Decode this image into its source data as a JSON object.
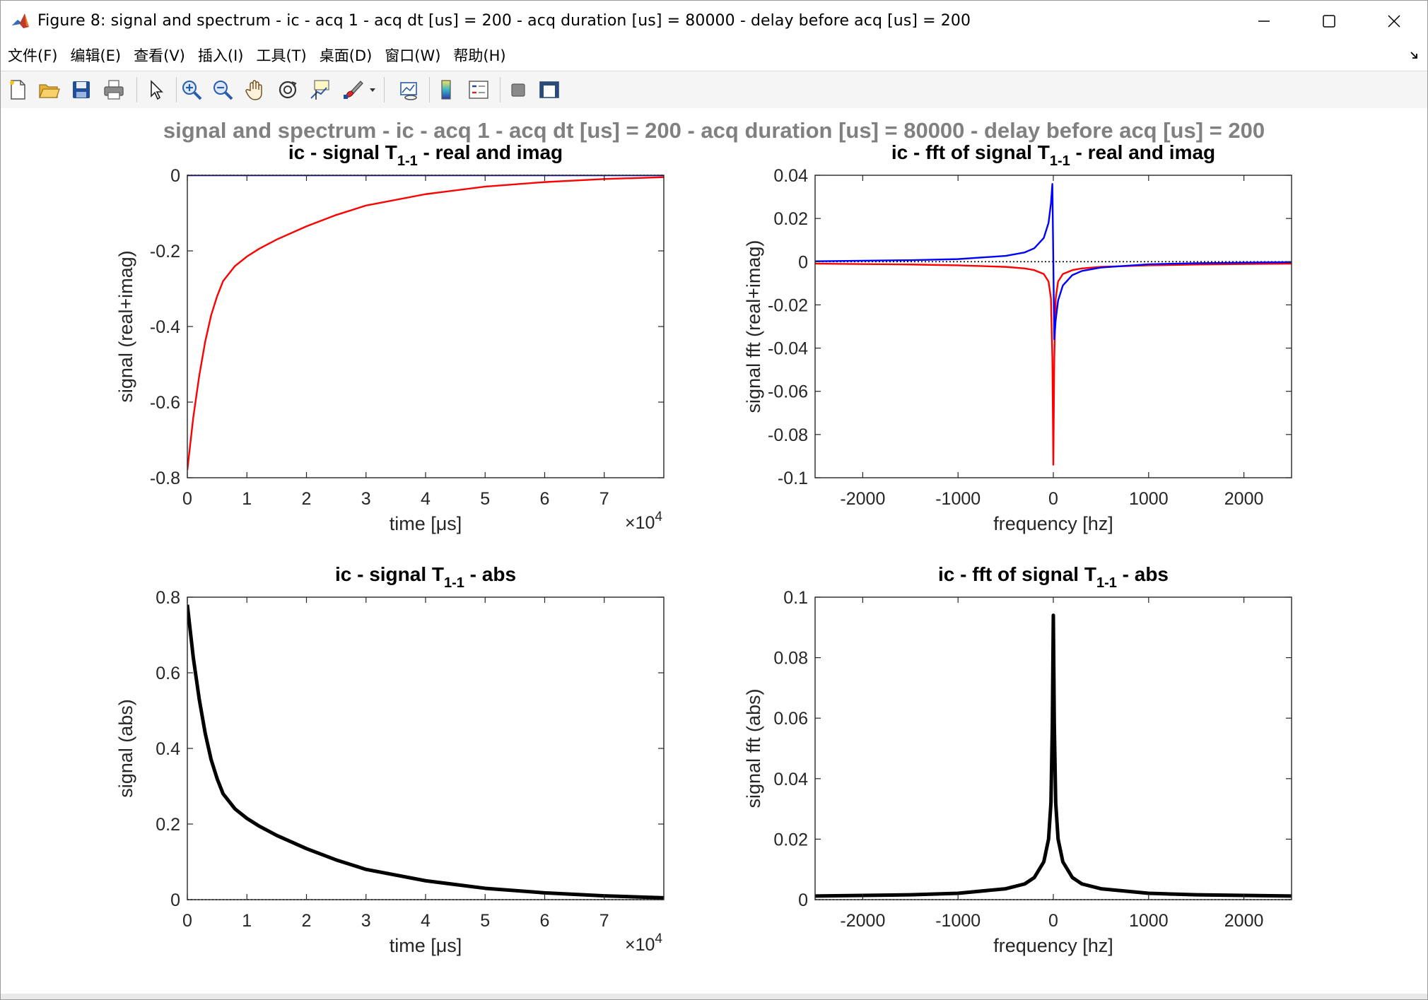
{
  "window": {
    "title": "Figure 8: signal and spectrum - ic - acq 1 - acq dt [us] = 200 - acq duration [us] = 80000 - delay before acq [us] = 200",
    "controls": [
      "minimize-icon",
      "maximize-icon",
      "close-icon"
    ]
  },
  "menu": {
    "items": [
      "文件(F)",
      "编辑(E)",
      "查看(V)",
      "插入(I)",
      "工具(T)",
      "桌面(D)",
      "窗口(W)",
      "帮助(H)"
    ]
  },
  "toolbar": {
    "icons": [
      "new-figure-icon",
      "open-file-icon",
      "save-icon",
      "print-icon",
      "select-arrow-icon",
      "zoom-in-icon",
      "zoom-out-icon",
      "pan-hand-icon",
      "rotate-3d-icon",
      "data-cursor-icon",
      "brush-icon",
      "brush-dropdown-icon",
      "link-plot-icon",
      "colorbar-icon",
      "legend-icon",
      "hide-plot-tools-icon",
      "show-plot-tools-icon"
    ]
  },
  "figure": {
    "suptitle": "signal and spectrum - ic - acq 1 - acq dt [us] = 200 - acq duration [us] = 80000 - delay before acq [us] = 200"
  },
  "colors": {
    "real": "#ff0000",
    "imag": "#0000ff",
    "abs": "#000000",
    "zero_line": "#000000",
    "suptitle": "#808080"
  },
  "chart_data": [
    {
      "type": "line",
      "title_prefix": "ic - signal T",
      "title_sub": "1-1",
      "title_suffix": " - real and imag",
      "xlabel": "time [μs]",
      "ylabel": "signal (real+imag)",
      "x_exponent": "4",
      "xlim": [
        0,
        80000
      ],
      "ylim": [
        -0.8,
        0
      ],
      "xticks": [
        0,
        10000,
        20000,
        30000,
        40000,
        50000,
        60000,
        70000
      ],
      "xticklabels": [
        "0",
        "1",
        "2",
        "3",
        "4",
        "5",
        "6",
        "7"
      ],
      "yticks": [
        -0.8,
        -0.6,
        -0.4,
        -0.2,
        0
      ],
      "yticklabels": [
        "-0.8",
        "-0.6",
        "-0.4",
        "-0.2",
        "0"
      ],
      "series": [
        {
          "color_key": "real",
          "x": [
            0,
            500,
            1000,
            2000,
            3000,
            4000,
            5000,
            6000,
            8000,
            10000,
            12000,
            15000,
            20000,
            25000,
            30000,
            40000,
            50000,
            60000,
            70000,
            80000
          ],
          "y": [
            -0.78,
            -0.71,
            -0.64,
            -0.53,
            -0.44,
            -0.37,
            -0.32,
            -0.28,
            -0.24,
            -0.215,
            -0.195,
            -0.17,
            -0.135,
            -0.105,
            -0.08,
            -0.05,
            -0.03,
            -0.018,
            -0.01,
            -0.005
          ]
        },
        {
          "color_key": "imag",
          "x": [
            0,
            80000
          ],
          "y": [
            0,
            0
          ]
        }
      ],
      "zero_line": true
    },
    {
      "type": "line",
      "title_prefix": "ic - fft of signal T",
      "title_sub": "1-1",
      "title_suffix": " - real and imag",
      "xlabel": "frequency [hz]",
      "ylabel": "signal fft (real+imag)",
      "xlim": [
        -2500,
        2500
      ],
      "ylim": [
        -0.1,
        0.04
      ],
      "xticks": [
        -2000,
        -1000,
        0,
        1000,
        2000
      ],
      "xticklabels": [
        "-2000",
        "-1000",
        "0",
        "1000",
        "2000"
      ],
      "yticks": [
        -0.1,
        -0.08,
        -0.06,
        -0.04,
        -0.02,
        0,
        0.02,
        0.04
      ],
      "yticklabels": [
        "-0.1",
        "-0.08",
        "-0.06",
        "-0.04",
        "-0.02",
        "0",
        "0.02",
        "0.04"
      ],
      "series": [
        {
          "color_key": "real",
          "x": [
            -2500,
            -1500,
            -1000,
            -500,
            -300,
            -200,
            -100,
            -50,
            -25,
            -10,
            0,
            10,
            25,
            50,
            100,
            200,
            300,
            500,
            1000,
            1500,
            2500
          ],
          "y": [
            -0.0009,
            -0.0013,
            -0.0017,
            -0.0024,
            -0.0031,
            -0.0039,
            -0.0057,
            -0.0092,
            -0.017,
            -0.045,
            -0.094,
            -0.045,
            -0.017,
            -0.0092,
            -0.0057,
            -0.0039,
            -0.0031,
            -0.0024,
            -0.0017,
            -0.0013,
            -0.0009
          ]
        },
        {
          "color_key": "imag",
          "x": [
            -2500,
            -1500,
            -1000,
            -500,
            -300,
            -200,
            -100,
            -50,
            -25,
            -10,
            0,
            10,
            25,
            50,
            100,
            200,
            300,
            500,
            1000,
            1500,
            2500
          ],
          "y": [
            0.0002,
            0.0007,
            0.0012,
            0.0027,
            0.0043,
            0.0062,
            0.011,
            0.018,
            0.027,
            0.036,
            0,
            -0.036,
            -0.027,
            -0.018,
            -0.011,
            -0.0062,
            -0.0043,
            -0.0027,
            -0.0012,
            -0.0007,
            -0.0002
          ]
        }
      ],
      "zero_line": true
    },
    {
      "type": "line",
      "title_prefix": "ic - signal T",
      "title_sub": "1-1",
      "title_suffix": " - abs",
      "xlabel": "time [μs]",
      "ylabel": "signal (abs)",
      "x_exponent": "4",
      "xlim": [
        0,
        80000
      ],
      "ylim": [
        0,
        0.8
      ],
      "xticks": [
        0,
        10000,
        20000,
        30000,
        40000,
        50000,
        60000,
        70000
      ],
      "xticklabels": [
        "0",
        "1",
        "2",
        "3",
        "4",
        "5",
        "6",
        "7"
      ],
      "yticks": [
        0,
        0.2,
        0.4,
        0.6,
        0.8
      ],
      "yticklabels": [
        "0",
        "0.2",
        "0.4",
        "0.6",
        "0.8"
      ],
      "series": [
        {
          "color_key": "abs",
          "thick": true,
          "x": [
            0,
            500,
            1000,
            2000,
            3000,
            4000,
            5000,
            6000,
            8000,
            10000,
            12000,
            15000,
            20000,
            25000,
            30000,
            40000,
            50000,
            60000,
            70000,
            80000
          ],
          "y": [
            0.78,
            0.71,
            0.64,
            0.53,
            0.44,
            0.37,
            0.32,
            0.28,
            0.24,
            0.215,
            0.195,
            0.17,
            0.135,
            0.105,
            0.08,
            0.05,
            0.03,
            0.018,
            0.01,
            0.005
          ]
        }
      ],
      "zero_line": true
    },
    {
      "type": "line",
      "title_prefix": "ic - fft of signal T",
      "title_sub": "1-1",
      "title_suffix": " - abs",
      "xlabel": "frequency [hz]",
      "ylabel": "signal fft (abs)",
      "xlim": [
        -2500,
        2500
      ],
      "ylim": [
        0,
        0.1
      ],
      "xticks": [
        -2000,
        -1000,
        0,
        1000,
        2000
      ],
      "xticklabels": [
        "-2000",
        "-1000",
        "0",
        "1000",
        "2000"
      ],
      "yticks": [
        0,
        0.02,
        0.04,
        0.06,
        0.08,
        0.1
      ],
      "yticklabels": [
        "0",
        "0.02",
        "0.04",
        "0.06",
        "0.08",
        "0.1"
      ],
      "series": [
        {
          "color_key": "abs",
          "thick": true,
          "x": [
            -2500,
            -1500,
            -1000,
            -500,
            -300,
            -200,
            -100,
            -50,
            -25,
            -10,
            0,
            10,
            25,
            50,
            100,
            200,
            300,
            500,
            1000,
            1500,
            2500
          ],
          "y": [
            0.0012,
            0.0016,
            0.0021,
            0.0036,
            0.0052,
            0.0073,
            0.0125,
            0.02,
            0.032,
            0.058,
            0.094,
            0.058,
            0.032,
            0.02,
            0.0125,
            0.0073,
            0.0052,
            0.0036,
            0.0021,
            0.0016,
            0.0012
          ]
        }
      ],
      "zero_line": true
    }
  ]
}
